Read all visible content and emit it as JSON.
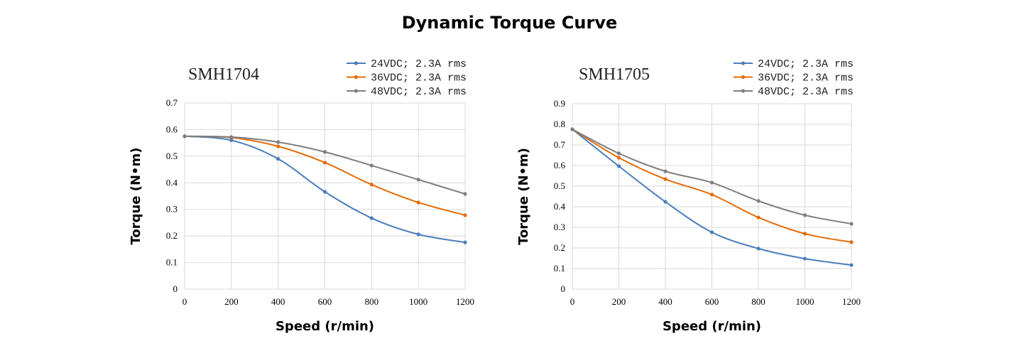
{
  "title": "Dynamic Torque Curve",
  "colors": {
    "24V": "#4a7ebb",
    "36V": "#e46c0a",
    "48V": "#7f7f7f",
    "grid": "#d9d9d9"
  },
  "chart_data": [
    {
      "type": "line",
      "title": "SMH1704",
      "xlabel": "Speed (r/min)",
      "ylabel": "Torque (N•m)",
      "x": [
        0,
        200,
        400,
        600,
        800,
        1000,
        1200
      ],
      "xlim": [
        0,
        1200
      ],
      "ylim": [
        0,
        0.7
      ],
      "xticks": [
        "0",
        "200",
        "400",
        "600",
        "800",
        "1000",
        "1200"
      ],
      "yticks": [
        "0",
        "0.1",
        "0.2",
        "0.3",
        "0.4",
        "0.5",
        "0.6",
        "0.7"
      ],
      "grid": true,
      "legend": "top-right",
      "series": [
        {
          "name": "24VDC; 2.3A rms",
          "values": [
            0.575,
            0.56,
            0.49,
            0.366,
            0.267,
            0.206,
            0.176
          ]
        },
        {
          "name": "36VDC; 2.3A rms",
          "values": [
            0.575,
            0.57,
            0.537,
            0.476,
            0.393,
            0.326,
            0.278
          ]
        },
        {
          "name": "48VDC; 2.3A rms",
          "values": [
            0.575,
            0.572,
            0.553,
            0.516,
            0.465,
            0.412,
            0.358
          ]
        }
      ]
    },
    {
      "type": "line",
      "title": "SMH1705",
      "xlabel": "Speed (r/min)",
      "ylabel": "Torque (N•m)",
      "x": [
        0,
        200,
        400,
        600,
        800,
        1000,
        1200
      ],
      "xlim": [
        0,
        1200
      ],
      "ylim": [
        0,
        0.9
      ],
      "xticks": [
        "0",
        "200",
        "400",
        "600",
        "800",
        "1000",
        "1200"
      ],
      "yticks": [
        "0",
        "0.1",
        "0.2",
        "0.3",
        "0.4",
        "0.5",
        "0.6",
        "0.7",
        "0.8",
        "0.9"
      ],
      "grid": true,
      "legend": "top-right",
      "series": [
        {
          "name": "24VDC; 2.3A rms",
          "values": [
            0.776,
            0.597,
            0.424,
            0.276,
            0.197,
            0.148,
            0.117
          ]
        },
        {
          "name": "36VDC; 2.3A rms",
          "values": [
            0.776,
            0.638,
            0.534,
            0.459,
            0.348,
            0.269,
            0.228
          ]
        },
        {
          "name": "48VDC; 2.3A rms",
          "values": [
            0.776,
            0.659,
            0.572,
            0.517,
            0.428,
            0.359,
            0.317
          ]
        }
      ]
    }
  ]
}
